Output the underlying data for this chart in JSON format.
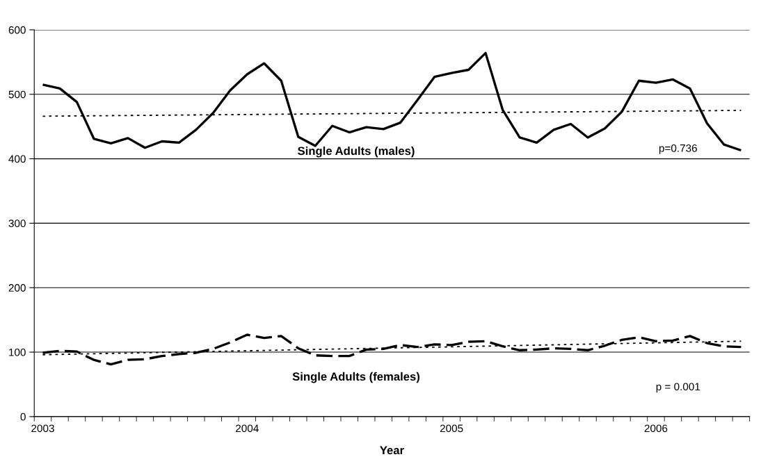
{
  "chart_data": {
    "type": "line",
    "xlabel": "Year",
    "categories": [
      "2003",
      null,
      null,
      null,
      null,
      null,
      null,
      null,
      null,
      null,
      null,
      null,
      "2004",
      null,
      null,
      null,
      null,
      null,
      null,
      null,
      null,
      null,
      null,
      null,
      "2005",
      null,
      null,
      null,
      null,
      null,
      null,
      null,
      null,
      null,
      null,
      null,
      "2006",
      null,
      null,
      null,
      null,
      null
    ],
    "series": [
      {
        "name": "Single Adults (males)",
        "color": "#000000",
        "line_style": "solid",
        "values": [
          515,
          509,
          488,
          431,
          424,
          432,
          417,
          427,
          425,
          445,
          471,
          506,
          531,
          548,
          521,
          434,
          420,
          451,
          441,
          449,
          446,
          456,
          491,
          527,
          533,
          538,
          564,
          476,
          433,
          425,
          445,
          454,
          433,
          447,
          473,
          521,
          518,
          523,
          509,
          455,
          422,
          413
        ]
      },
      {
        "name": "Single Adults (females)",
        "color": "#000000",
        "line_style": "dashed",
        "values": [
          99,
          102,
          101,
          88,
          81,
          88,
          89,
          94,
          97,
          99,
          105,
          115,
          127,
          122,
          125,
          106,
          95,
          94,
          94,
          104,
          105,
          111,
          108,
          112,
          111,
          116,
          117,
          109,
          103,
          104,
          106,
          105,
          103,
          110,
          119,
          123,
          117,
          118,
          125,
          114,
          109,
          108
        ]
      },
      {
        "color": "#000000",
        "line_style": "dotted",
        "values": [
          466,
          null,
          null,
          null,
          null,
          null,
          null,
          null,
          null,
          null,
          null,
          null,
          null,
          null,
          null,
          null,
          null,
          null,
          null,
          null,
          null,
          null,
          null,
          null,
          null,
          null,
          null,
          null,
          null,
          null,
          null,
          null,
          null,
          null,
          null,
          null,
          null,
          null,
          null,
          null,
          null,
          475
        ]
      },
      {
        "color": "#000000",
        "line_style": "dotted",
        "values": [
          96,
          null,
          null,
          null,
          null,
          null,
          null,
          null,
          null,
          null,
          null,
          null,
          null,
          null,
          null,
          null,
          null,
          null,
          null,
          null,
          null,
          null,
          null,
          null,
          null,
          null,
          null,
          null,
          null,
          null,
          null,
          null,
          null,
          null,
          null,
          null,
          null,
          null,
          null,
          null,
          null,
          117
        ]
      }
    ],
    "annotations": [
      "p=0.736",
      "p = 0.001"
    ],
    "ylim": [
      0,
      600
    ],
    "yticks": [
      0,
      100,
      200,
      300,
      400,
      500,
      600
    ],
    "grid": "y",
    "legend": false
  }
}
